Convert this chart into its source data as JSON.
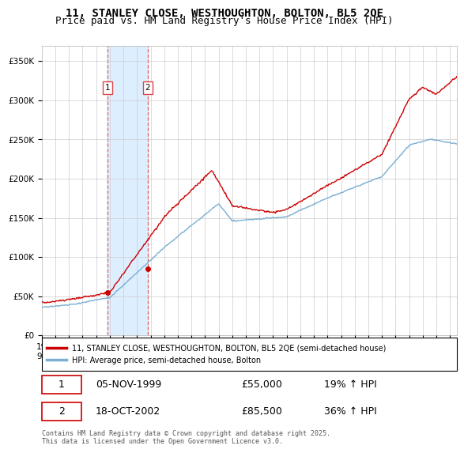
{
  "title_line1": "11, STANLEY CLOSE, WESTHOUGHTON, BOLTON, BL5 2QE",
  "title_line2": "Price paid vs. HM Land Registry's House Price Index (HPI)",
  "ylim": [
    0,
    370000
  ],
  "yticks": [
    0,
    50000,
    100000,
    150000,
    200000,
    250000,
    300000,
    350000
  ],
  "ytick_labels": [
    "£0",
    "£50K",
    "£100K",
    "£150K",
    "£200K",
    "£250K",
    "£300K",
    "£350K"
  ],
  "x_start_year": 1995,
  "x_end_year": 2025,
  "hpi_color": "#7bafd4",
  "price_color": "#cc0000",
  "sale1_date": "05-NOV-1999",
  "sale1_price": 55000,
  "sale1_pct": "19%",
  "sale1_year": 1999.85,
  "sale2_date": "18-OCT-2002",
  "sale2_price": 85500,
  "sale2_pct": "36%",
  "sale2_year": 2002.79,
  "shade_color": "#ddeeff",
  "dashed_color": "#dd4444",
  "legend_label1": "11, STANLEY CLOSE, WESTHOUGHTON, BOLTON, BL5 2QE (semi-detached house)",
  "legend_label2": "HPI: Average price, semi-detached house, Bolton",
  "footer": "Contains HM Land Registry data © Crown copyright and database right 2025.\nThis data is licensed under the Open Government Licence v3.0.",
  "grid_color": "#cccccc",
  "background_color": "#ffffff",
  "title_fontsize": 10,
  "subtitle_fontsize": 9,
  "tick_fontsize": 7.5
}
